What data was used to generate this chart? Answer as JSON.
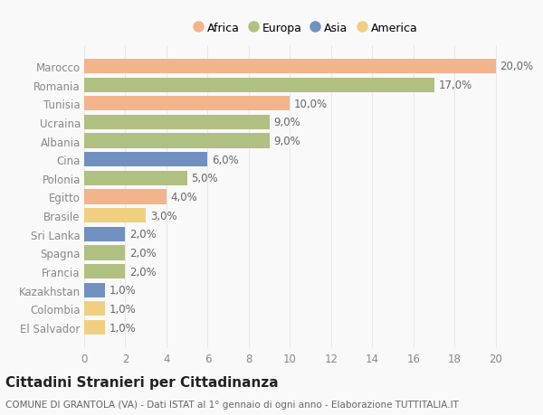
{
  "categories": [
    "Marocco",
    "Romania",
    "Tunisia",
    "Ucraina",
    "Albania",
    "Cina",
    "Polonia",
    "Egitto",
    "Brasile",
    "Sri Lanka",
    "Spagna",
    "Francia",
    "Kazakhstan",
    "Colombia",
    "El Salvador"
  ],
  "values": [
    20.0,
    17.0,
    10.0,
    9.0,
    9.0,
    6.0,
    5.0,
    4.0,
    3.0,
    2.0,
    2.0,
    2.0,
    1.0,
    1.0,
    1.0
  ],
  "continents": [
    "Africa",
    "Europa",
    "Africa",
    "Europa",
    "Europa",
    "Asia",
    "Europa",
    "Africa",
    "America",
    "Asia",
    "Europa",
    "Europa",
    "Asia",
    "America",
    "America"
  ],
  "continent_colors": {
    "Africa": "#F2B48A",
    "Europa": "#B0C080",
    "Asia": "#7090C0",
    "America": "#F0D080"
  },
  "legend_order": [
    "Africa",
    "Europa",
    "Asia",
    "America"
  ],
  "title": "Cittadini Stranieri per Cittadinanza",
  "subtitle": "COMUNE DI GRANTOLA (VA) - Dati ISTAT al 1° gennaio di ogni anno - Elaborazione TUTTITALIA.IT",
  "xlim": [
    0,
    21.5
  ],
  "xticks": [
    0,
    2,
    4,
    6,
    8,
    10,
    12,
    14,
    16,
    18,
    20
  ],
  "background_color": "#f9f9f9",
  "grid_color": "#e8e8e8",
  "bar_height": 0.78,
  "label_fontsize": 8.5,
  "title_fontsize": 11,
  "subtitle_fontsize": 7.5,
  "legend_fontsize": 9,
  "tick_fontsize": 8.5,
  "label_color": "#666666",
  "tick_color": "#888888"
}
